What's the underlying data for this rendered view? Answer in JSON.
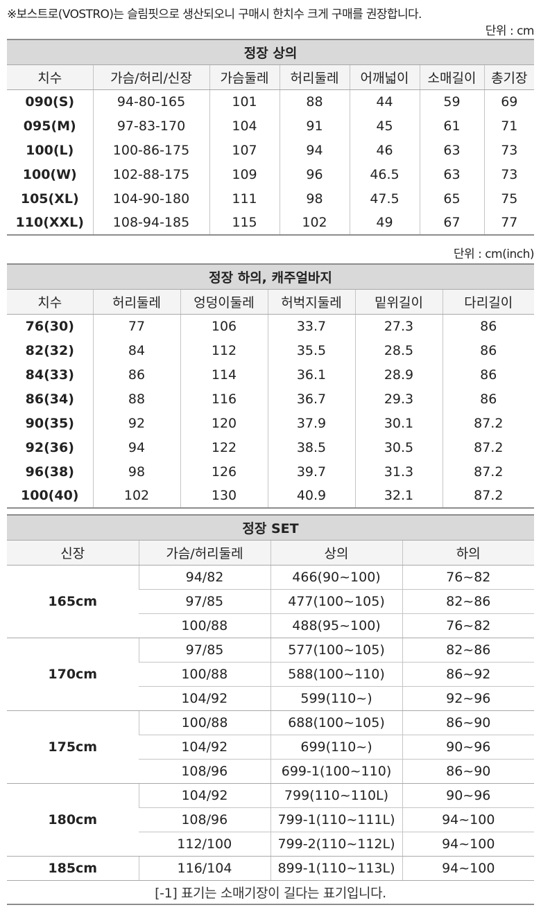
{
  "notice": "※보스트로(VOSTRO)는 슬림핏으로 생산되오니 구매시 한치수 크게 구매를 권장합니다.",
  "top": {
    "unit": "단위 : cm",
    "title": "정장 상의",
    "headers": [
      "치수",
      "가슴/허리/신장",
      "가슴둘레",
      "허리둘레",
      "어깨넓이",
      "소매길이",
      "총기장"
    ],
    "rows": [
      [
        "090(S)",
        "94-80-165",
        "101",
        "88",
        "44",
        "59",
        "69"
      ],
      [
        "095(M)",
        "97-83-170",
        "104",
        "91",
        "45",
        "61",
        "71"
      ],
      [
        "100(L)",
        "100-86-175",
        "107",
        "94",
        "46",
        "63",
        "73"
      ],
      [
        "100(W)",
        "102-88-175",
        "109",
        "96",
        "46.5",
        "63",
        "73"
      ],
      [
        "105(XL)",
        "104-90-180",
        "111",
        "98",
        "47.5",
        "65",
        "75"
      ],
      [
        "110(XXL)",
        "108-94-185",
        "115",
        "102",
        "49",
        "67",
        "77"
      ]
    ]
  },
  "bottom": {
    "unit": "단위 : cm(inch)",
    "title": "정장 하의, 캐주얼바지",
    "headers": [
      "치수",
      "허리둘레",
      "엉덩이둘레",
      "허벅지둘레",
      "밑위길이",
      "다리길이"
    ],
    "rows": [
      [
        "76(30)",
        "77",
        "106",
        "33.7",
        "27.3",
        "86"
      ],
      [
        "82(32)",
        "84",
        "112",
        "35.5",
        "28.5",
        "86"
      ],
      [
        "84(33)",
        "86",
        "114",
        "36.1",
        "28.9",
        "86"
      ],
      [
        "86(34)",
        "88",
        "116",
        "36.7",
        "29.3",
        "86"
      ],
      [
        "90(35)",
        "92",
        "120",
        "37.9",
        "30.1",
        "87.2"
      ],
      [
        "92(36)",
        "94",
        "122",
        "38.5",
        "30.5",
        "87.2"
      ],
      [
        "96(38)",
        "98",
        "126",
        "39.7",
        "31.3",
        "87.2"
      ],
      [
        "100(40)",
        "102",
        "130",
        "40.9",
        "32.1",
        "87.2"
      ]
    ]
  },
  "set": {
    "title": "정장 SET",
    "headers": [
      "신장",
      "가슴/허리둘레",
      "상의",
      "하의"
    ],
    "groups": [
      {
        "height": "165cm",
        "rows": [
          [
            "94/82",
            "466(90~100)",
            "76~82"
          ],
          [
            "97/85",
            "477(100~105)",
            "82~86"
          ],
          [
            "100/88",
            "488(95~100)",
            "76~82"
          ]
        ]
      },
      {
        "height": "170cm",
        "rows": [
          [
            "97/85",
            "577(100~105)",
            "82~86"
          ],
          [
            "100/88",
            "588(100~110)",
            "86~92"
          ],
          [
            "104/92",
            "599(110~)",
            "92~96"
          ]
        ]
      },
      {
        "height": "175cm",
        "rows": [
          [
            "100/88",
            "688(100~105)",
            "86~90"
          ],
          [
            "104/92",
            "699(110~)",
            "90~96"
          ],
          [
            "108/96",
            "699-1(100~110)",
            "86~90"
          ]
        ]
      },
      {
        "height": "180cm",
        "rows": [
          [
            "104/92",
            "799(110~110L)",
            "90~96"
          ],
          [
            "108/96",
            "799-1(110~111L)",
            "94~100"
          ],
          [
            "112/100",
            "799-2(110~112L)",
            "94~100"
          ]
        ]
      },
      {
        "height": "185cm",
        "rows": [
          [
            "116/104",
            "899-1(110~113L)",
            "94~100"
          ]
        ]
      }
    ],
    "footnote": "[-1] 표기는 소매기장이 길다는 표기입니다."
  }
}
